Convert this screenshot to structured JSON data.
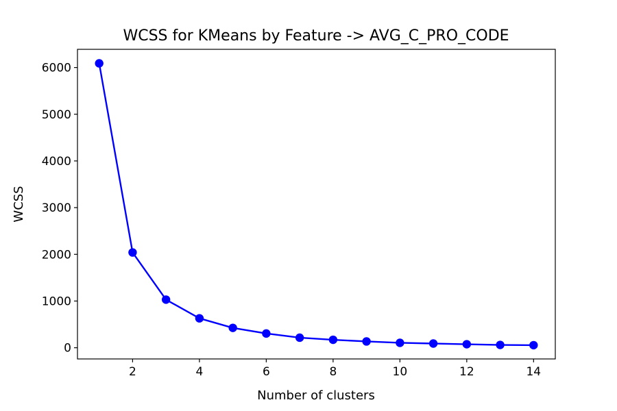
{
  "chart_data": {
    "type": "line",
    "title": "WCSS for KMeans by Feature -> AVG_C_PRO_CODE",
    "xlabel": "Number of clusters",
    "ylabel": "WCSS",
    "x": [
      1,
      2,
      3,
      4,
      5,
      6,
      7,
      8,
      9,
      10,
      11,
      12,
      13,
      14
    ],
    "series": [
      {
        "values": [
          6090,
          2040,
          1030,
          630,
          425,
          305,
          215,
          170,
          135,
          105,
          90,
          75,
          60,
          55
        ],
        "color": "#0000ff",
        "marker": "circle"
      }
    ],
    "xlim": [
      0.35,
      14.65
    ],
    "ylim": [
      -240,
      6390
    ],
    "x_ticks": [
      2,
      4,
      6,
      8,
      10,
      12,
      14
    ],
    "y_ticks": [
      0,
      1000,
      2000,
      3000,
      4000,
      5000,
      6000
    ],
    "grid": false,
    "legend": "none"
  }
}
